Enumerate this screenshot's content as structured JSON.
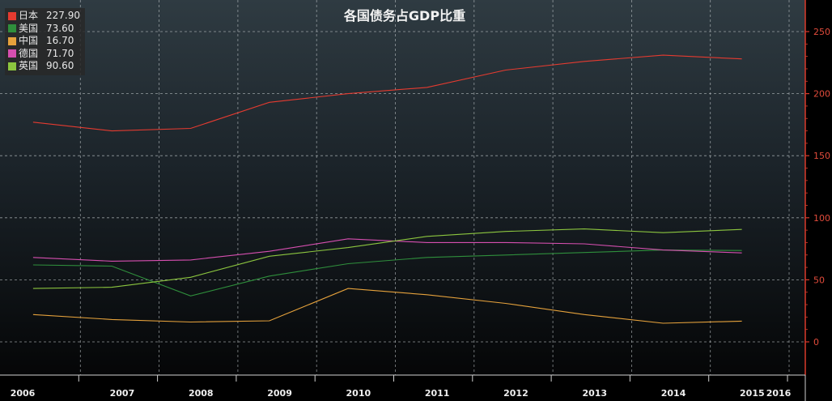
{
  "chart_data": {
    "type": "line",
    "title": "各国债务占GDP比重",
    "x": [
      "2006",
      "2007",
      "2008",
      "2009",
      "2010",
      "2011",
      "2012",
      "2013",
      "2014",
      "2015",
      "2016"
    ],
    "ylim": [
      -12,
      255
    ],
    "yticks": [
      0,
      50,
      100,
      150,
      200,
      250
    ],
    "grid": true,
    "legend_position": "top-left",
    "axis_color": "#d93a2b",
    "series": [
      {
        "name": "日本",
        "legend_value": "227.90",
        "color": "#e53b30",
        "points": [
          [
            2006.4,
            177
          ],
          [
            2007.4,
            170
          ],
          [
            2008.4,
            172
          ],
          [
            2009.4,
            193
          ],
          [
            2010.4,
            200
          ],
          [
            2011.4,
            205
          ],
          [
            2012.4,
            219
          ],
          [
            2013.4,
            226
          ],
          [
            2014.4,
            231
          ],
          [
            2015.4,
            228
          ]
        ]
      },
      {
        "name": "美国",
        "legend_value": "73.60",
        "color": "#2f8f3c",
        "points": [
          [
            2006.4,
            62
          ],
          [
            2007.4,
            61
          ],
          [
            2008.4,
            37
          ],
          [
            2009.4,
            53
          ],
          [
            2010.4,
            63
          ],
          [
            2011.4,
            68
          ],
          [
            2012.4,
            70
          ],
          [
            2013.4,
            72
          ],
          [
            2014.4,
            74
          ],
          [
            2015.4,
            73.6
          ]
        ]
      },
      {
        "name": "中国",
        "legend_value": "16.70",
        "color": "#e6a23c",
        "points": [
          [
            2006.4,
            22
          ],
          [
            2007.4,
            18
          ],
          [
            2008.4,
            16
          ],
          [
            2009.4,
            17
          ],
          [
            2010.4,
            43
          ],
          [
            2011.4,
            38
          ],
          [
            2012.4,
            31
          ],
          [
            2013.4,
            22
          ],
          [
            2014.4,
            15
          ],
          [
            2015.4,
            16.7
          ]
        ]
      },
      {
        "name": "德国",
        "legend_value": "71.70",
        "color": "#d64fb0",
        "points": [
          [
            2006.4,
            68
          ],
          [
            2007.4,
            65
          ],
          [
            2008.4,
            66
          ],
          [
            2009.4,
            73
          ],
          [
            2010.4,
            83
          ],
          [
            2011.4,
            80
          ],
          [
            2012.4,
            80
          ],
          [
            2013.4,
            79
          ],
          [
            2014.4,
            74
          ],
          [
            2015.4,
            71.7
          ]
        ]
      },
      {
        "name": "英国",
        "legend_value": "90.60",
        "color": "#8cc63f",
        "points": [
          [
            2006.4,
            43
          ],
          [
            2007.4,
            44
          ],
          [
            2008.4,
            52
          ],
          [
            2009.4,
            69
          ],
          [
            2010.4,
            76
          ],
          [
            2011.4,
            85
          ],
          [
            2012.4,
            89
          ],
          [
            2013.4,
            91
          ],
          [
            2014.4,
            88
          ],
          [
            2015.4,
            90.6
          ]
        ]
      }
    ]
  }
}
